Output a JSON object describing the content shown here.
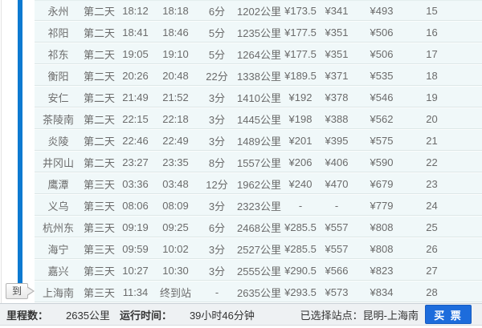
{
  "timeline": {
    "arrive_label": "到"
  },
  "table": {
    "rows": [
      {
        "station": "永州",
        "day": "第二天",
        "arrive": "18:12",
        "depart": "18:18",
        "stop": "6分",
        "distance": "1202公里",
        "fare1": "¥173.5",
        "fare2": "¥341",
        "fare3": "¥493",
        "no": "15"
      },
      {
        "station": "祁阳",
        "day": "第二天",
        "arrive": "18:41",
        "depart": "18:46",
        "stop": "5分",
        "distance": "1235公里",
        "fare1": "¥177.5",
        "fare2": "¥351",
        "fare3": "¥506",
        "no": "16"
      },
      {
        "station": "祁东",
        "day": "第二天",
        "arrive": "19:05",
        "depart": "19:10",
        "stop": "5分",
        "distance": "1264公里",
        "fare1": "¥177.5",
        "fare2": "¥351",
        "fare3": "¥506",
        "no": "17"
      },
      {
        "station": "衡阳",
        "day": "第二天",
        "arrive": "20:26",
        "depart": "20:48",
        "stop": "22分",
        "distance": "1338公里",
        "fare1": "¥189.5",
        "fare2": "¥371",
        "fare3": "¥535",
        "no": "18"
      },
      {
        "station": "安仁",
        "day": "第二天",
        "arrive": "21:49",
        "depart": "21:52",
        "stop": "3分",
        "distance": "1410公里",
        "fare1": "¥192",
        "fare2": "¥378",
        "fare3": "¥546",
        "no": "19"
      },
      {
        "station": "茶陵南",
        "day": "第二天",
        "arrive": "22:15",
        "depart": "22:18",
        "stop": "3分",
        "distance": "1445公里",
        "fare1": "¥198",
        "fare2": "¥388",
        "fare3": "¥562",
        "no": "20"
      },
      {
        "station": "炎陵",
        "day": "第二天",
        "arrive": "22:46",
        "depart": "22:49",
        "stop": "3分",
        "distance": "1489公里",
        "fare1": "¥201",
        "fare2": "¥395",
        "fare3": "¥575",
        "no": "21"
      },
      {
        "station": "井冈山",
        "day": "第二天",
        "arrive": "23:27",
        "depart": "23:35",
        "stop": "8分",
        "distance": "1557公里",
        "fare1": "¥206",
        "fare2": "¥406",
        "fare3": "¥590",
        "no": "22"
      },
      {
        "station": "鹰潭",
        "day": "第三天",
        "arrive": "03:36",
        "depart": "03:48",
        "stop": "12分",
        "distance": "1962公里",
        "fare1": "¥240",
        "fare2": "¥470",
        "fare3": "¥679",
        "no": "23"
      },
      {
        "station": "义乌",
        "day": "第三天",
        "arrive": "08:06",
        "depart": "08:09",
        "stop": "3分",
        "distance": "2323公里",
        "fare1": "-",
        "fare2": "-",
        "fare3": "¥779",
        "no": "24"
      },
      {
        "station": "杭州东",
        "day": "第三天",
        "arrive": "09:19",
        "depart": "09:25",
        "stop": "6分",
        "distance": "2468公里",
        "fare1": "¥285.5",
        "fare2": "¥557",
        "fare3": "¥808",
        "no": "25"
      },
      {
        "station": "海宁",
        "day": "第三天",
        "arrive": "09:59",
        "depart": "10:02",
        "stop": "3分",
        "distance": "2527公里",
        "fare1": "¥285.5",
        "fare2": "¥557",
        "fare3": "¥808",
        "no": "26"
      },
      {
        "station": "嘉兴",
        "day": "第三天",
        "arrive": "10:27",
        "depart": "10:30",
        "stop": "3分",
        "distance": "2555公里",
        "fare1": "¥290.5",
        "fare2": "¥566",
        "fare3": "¥823",
        "no": "27"
      },
      {
        "station": "上海南",
        "day": "第三天",
        "arrive": "11:34",
        "depart": "终到站",
        "stop": "-",
        "distance": "2635公里",
        "fare1": "¥293.5",
        "fare2": "¥573",
        "fare3": "¥834",
        "no": "28"
      }
    ]
  },
  "footer": {
    "mileage_label": "里程数：",
    "mileage_value": "2635公里",
    "runtime_label": "运行时间：",
    "runtime_value": "39小时46分钟",
    "selected_station_text": "已选择站点：昆明-上海南",
    "buy_button_label": "买 票"
  },
  "colors": {
    "route_bar_blue": "#0d7ad1",
    "row_background": "#f0f8f9",
    "footer_background": "#eef1f3",
    "buy_button_blue": "#1d6cdc",
    "row_text_gray": "#6b6b6b"
  }
}
